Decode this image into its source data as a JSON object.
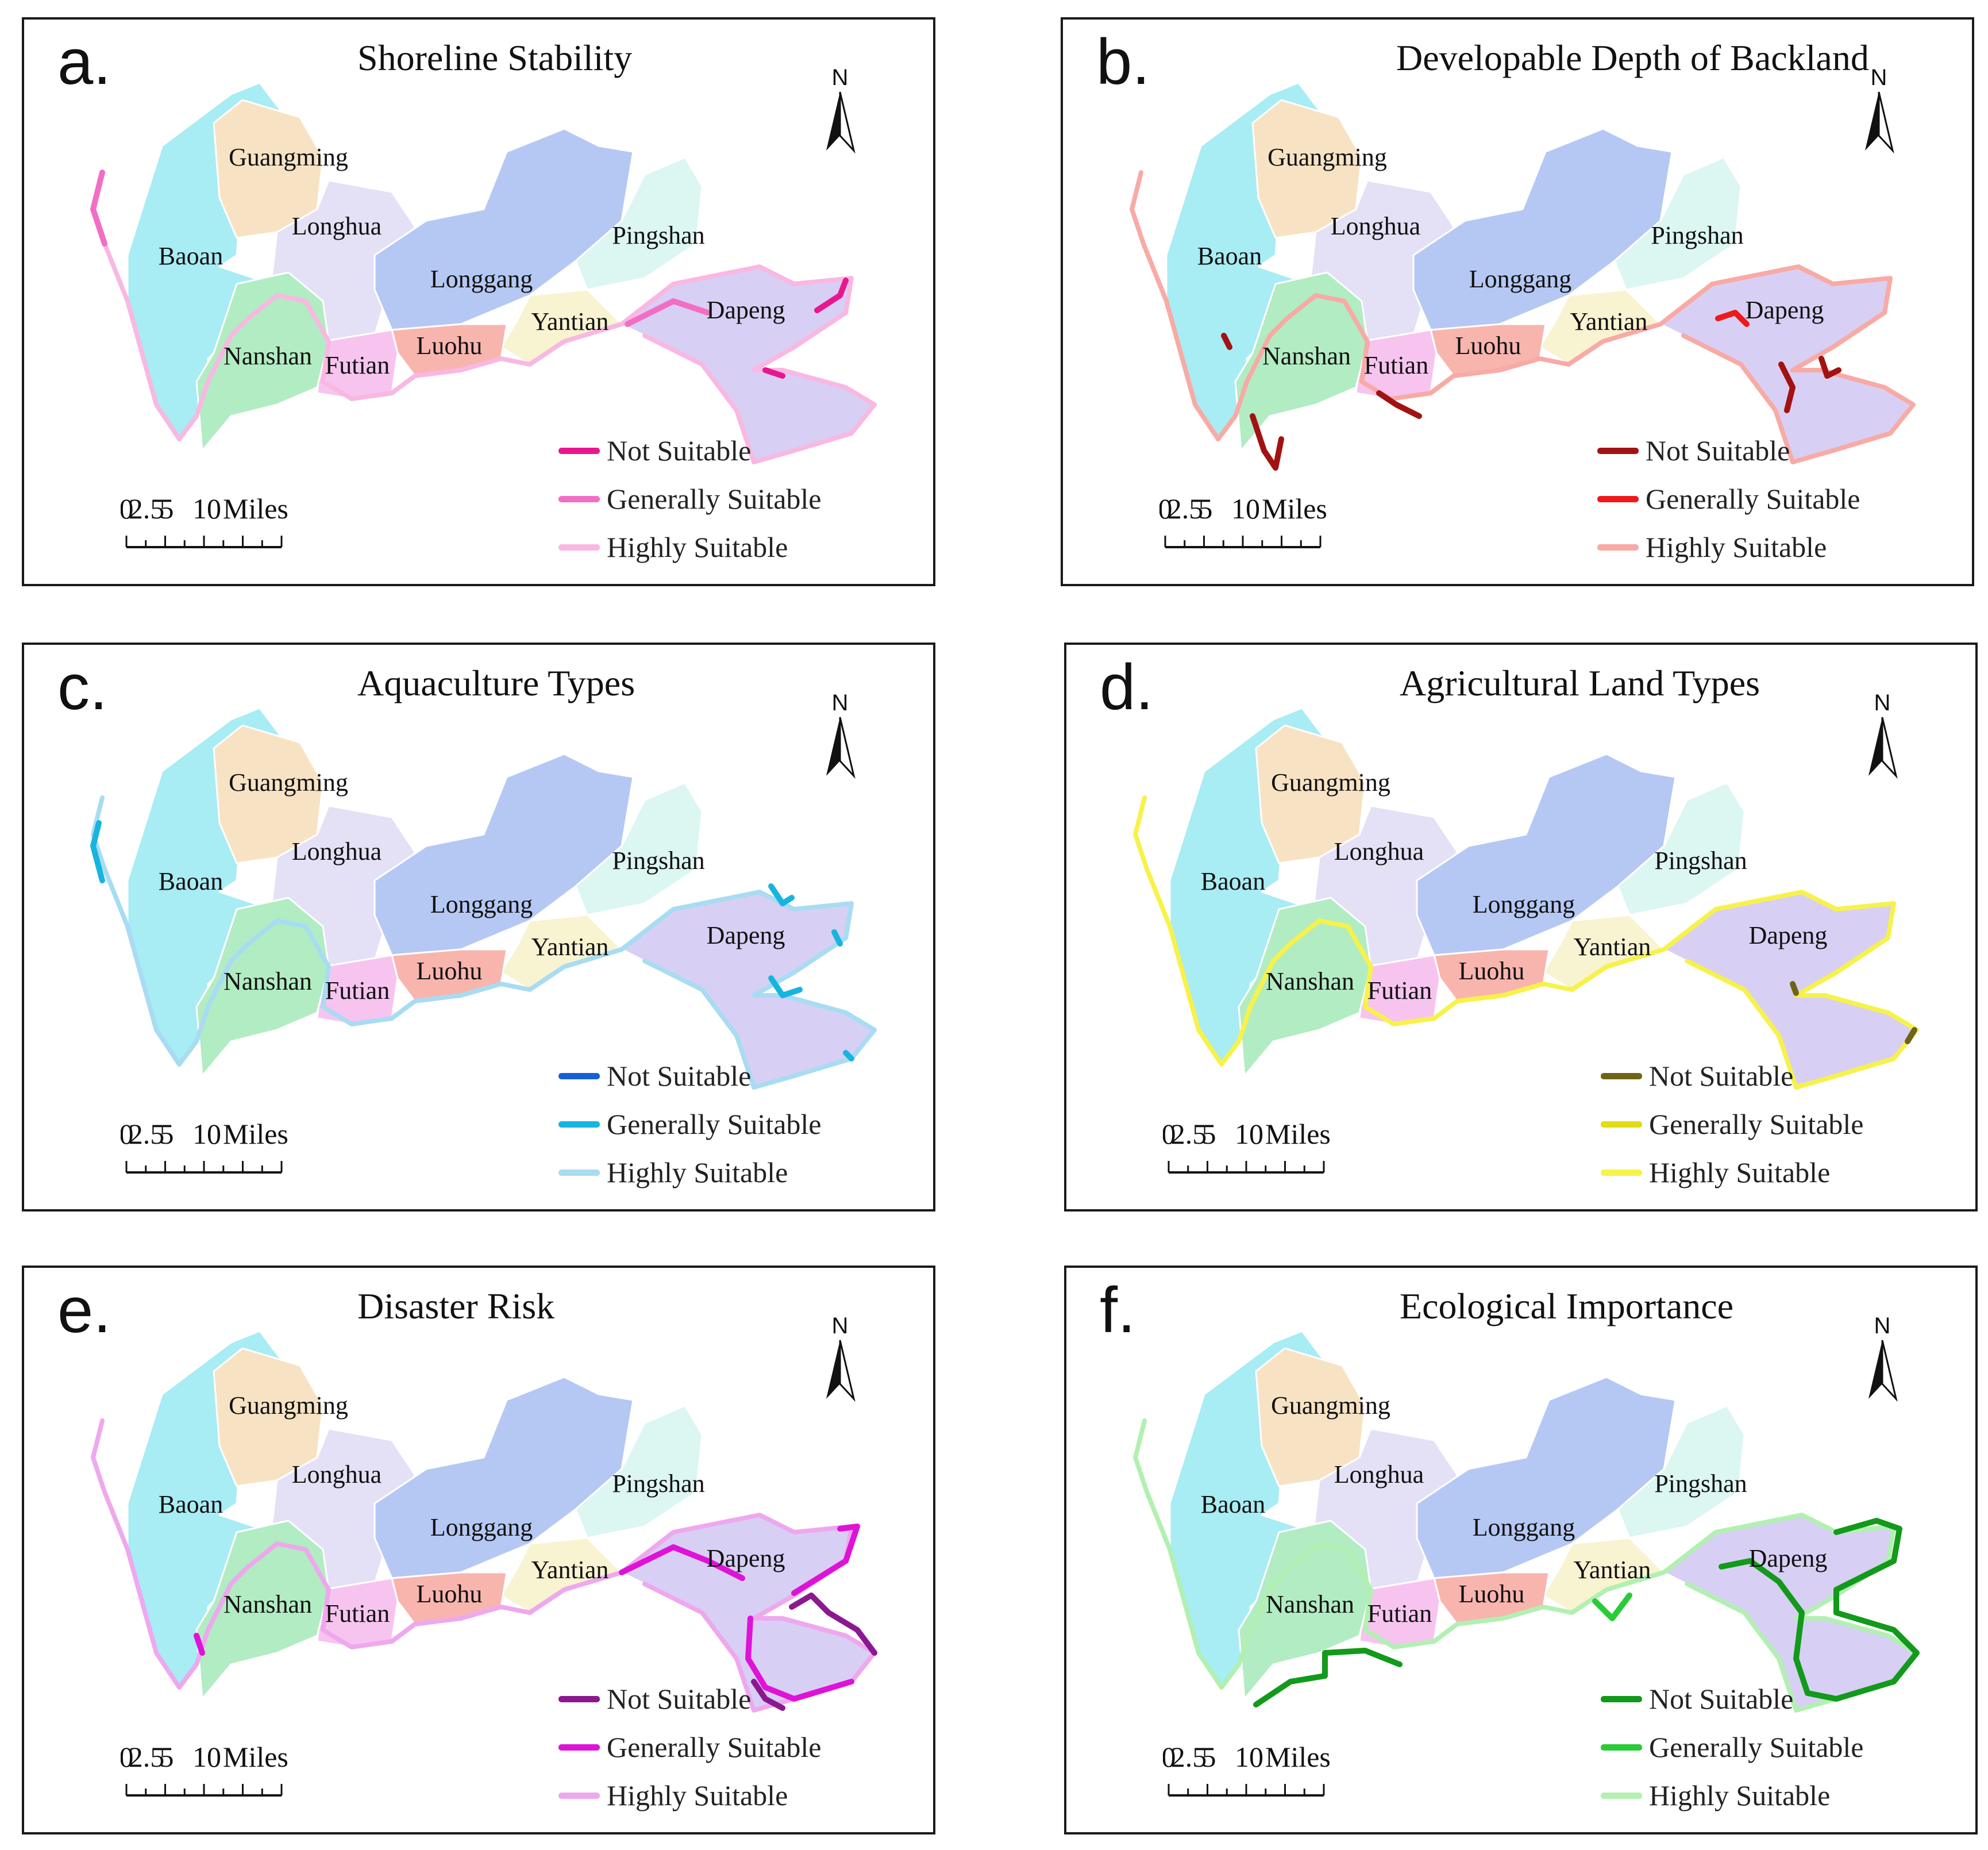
{
  "districts": {
    "guangming": "Guangming",
    "baoan": "Baoan",
    "longhua": "Longhua",
    "longgang": "Longgang",
    "pingshan": "Pingshan",
    "dapeng": "Dapeng",
    "yantian": "Yantian",
    "luohu": "Luohu",
    "futian": "Futian",
    "nanshan": "Nanshan"
  },
  "district_colors": {
    "baoan": "#a8ecf4",
    "guangming": "#f7e3c3",
    "longhua": "#e4e0f6",
    "longgang": "#b5c8f4",
    "pingshan": "#dcf6f2",
    "dapeng": "#d8cff4",
    "yantian": "#f8f3d0",
    "luohu": "#f8b5ae",
    "futian": "#f7c4f0",
    "nanshan": "#b2ecc2"
  },
  "north_label": "N",
  "scale_bar": {
    "ticks": [
      "0",
      "2.5",
      "5",
      "10"
    ],
    "unit": "Miles"
  },
  "legend_labels": [
    "Not Suitable",
    "Generally Suitable",
    "Highly Suitable"
  ],
  "panels": [
    {
      "letter": "a.",
      "title": "Shoreline Stability",
      "colors": {
        "not": "#e8178f",
        "general": "#f26ec4",
        "high": "#f8b8e2"
      }
    },
    {
      "letter": "b.",
      "title": "Developable Depth of Backland",
      "colors": {
        "not": "#a31212",
        "general": "#ee1a1a",
        "high": "#f8aaa5"
      }
    },
    {
      "letter": "c.",
      "title": "Aquaculture Types",
      "colors": {
        "not": "#1560d8",
        "general": "#18b4e0",
        "high": "#a8dcf2"
      }
    },
    {
      "letter": "d.",
      "title": "Agricultural Land Types",
      "colors": {
        "not": "#6e6418",
        "general": "#e2dc12",
        "high": "#f7f24a"
      }
    },
    {
      "letter": "e.",
      "title": "Disaster Risk",
      "colors": {
        "not": "#8c1890",
        "general": "#df12d8",
        "high": "#eea8ee"
      }
    },
    {
      "letter": "f.",
      "title": "Ecological Importance",
      "colors": {
        "not": "#129a1a",
        "general": "#28cc34",
        "high": "#b2f0b2"
      }
    }
  ]
}
